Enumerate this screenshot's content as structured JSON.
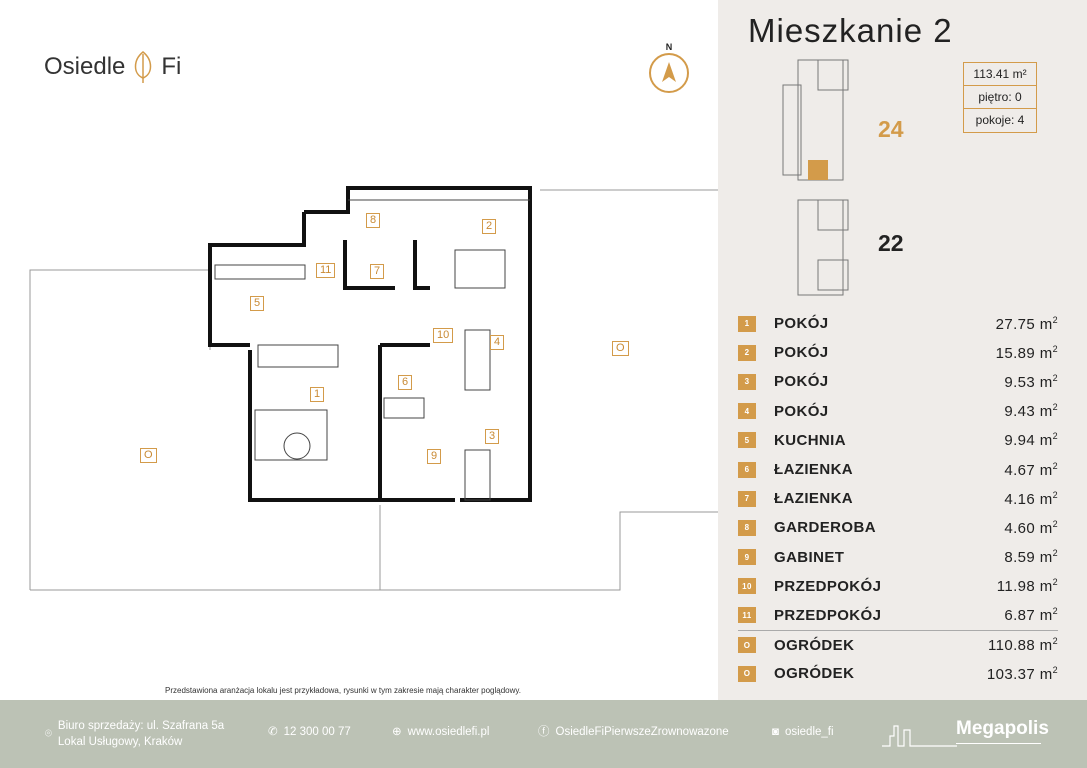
{
  "brand": {
    "name_left": "Osiedle",
    "name_right": "Fi",
    "compass": "N"
  },
  "apartment": {
    "title": "Mieszkanie 2",
    "area": "113.41 m²",
    "floor": "piętro: 0",
    "rooms": "pokoje: 4",
    "building_selected": "24",
    "building_other": "22"
  },
  "rooms": [
    {
      "n": "1",
      "name": "POKÓJ",
      "area": "27.75 m",
      "sup": "2"
    },
    {
      "n": "2",
      "name": "POKÓJ",
      "area": "15.89 m",
      "sup": "2"
    },
    {
      "n": "3",
      "name": "POKÓJ",
      "area": "9.53 m",
      "sup": "2"
    },
    {
      "n": "4",
      "name": "POKÓJ",
      "area": "9.43 m",
      "sup": "2"
    },
    {
      "n": "5",
      "name": "KUCHNIA",
      "area": "9.94 m",
      "sup": "2"
    },
    {
      "n": "6",
      "name": "ŁAZIENKA",
      "area": "4.67 m",
      "sup": "2"
    },
    {
      "n": "7",
      "name": "ŁAZIENKA",
      "area": "4.16 m",
      "sup": "2"
    },
    {
      "n": "8",
      "name": "GARDEROBA",
      "area": "4.60 m",
      "sup": "2"
    },
    {
      "n": "9",
      "name": "GABINET",
      "area": "8.59 m",
      "sup": "2"
    },
    {
      "n": "10",
      "name": "PRZEDPOKÓJ",
      "area": "11.98 m",
      "sup": "2"
    },
    {
      "n": "11",
      "name": "PRZEDPOKÓJ",
      "area": "6.87 m",
      "sup": "2"
    },
    {
      "n": "O",
      "name": "OGRÓDEK",
      "area": "110.88 m",
      "sup": "2"
    },
    {
      "n": "O",
      "name": "OGRÓDEK",
      "area": "103.37 m",
      "sup": "2"
    }
  ],
  "plan_labels": [
    "1",
    "2",
    "3",
    "4",
    "5",
    "6",
    "7",
    "8",
    "9",
    "10",
    "11",
    "O",
    "O"
  ],
  "disclaimer": "Przedstawiona aranżacja lokalu jest przykładowa, rysunki w tym zakresie mają charakter poglądowy.",
  "footer": {
    "address1": "Biuro sprzedaży: ul. Szafrana 5a",
    "address2": "Lokal Usługowy, Kraków",
    "phone": "12 300 00 77",
    "web": "www.osiedlefi.pl",
    "facebook": "OsiedleFiPierwszeZrownowazone",
    "instagram": "osiedle_fi",
    "developer": "Megapolis"
  },
  "colors": {
    "accent": "#d39b4a",
    "panel": "#efece9",
    "footer": "#bcc2b5"
  }
}
